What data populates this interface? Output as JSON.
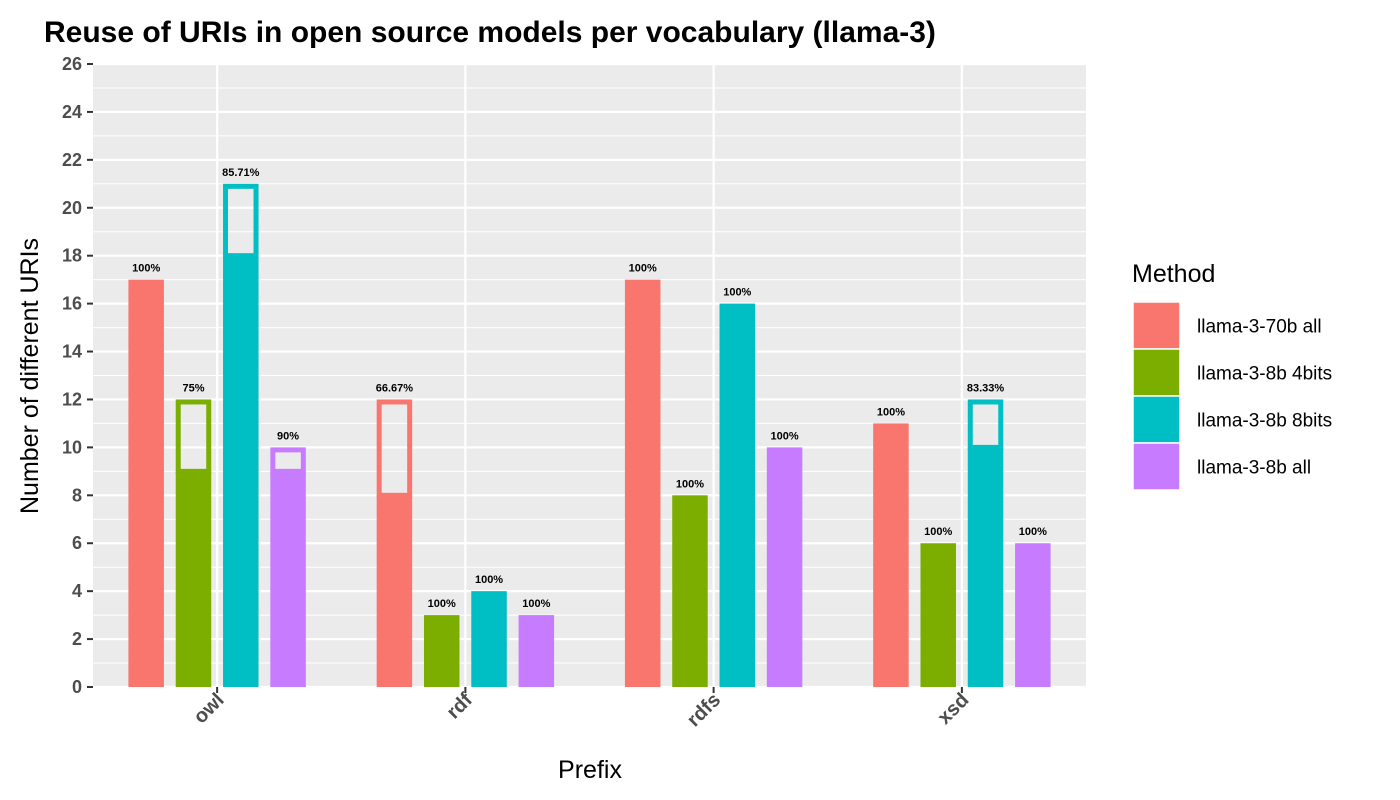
{
  "chart_data": {
    "type": "bar",
    "title": "Reuse of URIs in open source models per vocabulary (llama-3)",
    "xlabel": "Prefix",
    "ylabel": "Number of different URIs",
    "ylim": [
      0,
      26
    ],
    "yticks": [
      0,
      2,
      4,
      6,
      8,
      10,
      12,
      14,
      16,
      18,
      20,
      22,
      24,
      26
    ],
    "grid": true,
    "legend_title": "Method",
    "legend_position": "right",
    "categories": [
      "owl",
      "rdf",
      "rdfs",
      "xsd"
    ],
    "series": [
      {
        "name": "llama-3-70b all",
        "color": "#F8766D",
        "values": [
          17,
          12,
          17,
          11
        ],
        "filled_values": [
          17,
          8,
          17,
          11
        ],
        "labels": [
          "100%",
          "66.67%",
          "100%",
          "100%"
        ]
      },
      {
        "name": "llama-3-8b 4bits",
        "color": "#7CAE00",
        "values": [
          12,
          3,
          8,
          6
        ],
        "filled_values": [
          9,
          3,
          8,
          6
        ],
        "labels": [
          "75%",
          "100%",
          "100%",
          "100%"
        ]
      },
      {
        "name": "llama-3-8b 8bits",
        "color": "#00BFC4",
        "values": [
          21,
          4,
          16,
          12
        ],
        "filled_values": [
          18,
          4,
          16,
          10
        ],
        "labels": [
          "85.71%",
          "100%",
          "100%",
          "83.33%"
        ]
      },
      {
        "name": "llama-3-8b all",
        "color": "#C77CFF",
        "values": [
          10,
          3,
          10,
          6
        ],
        "filled_values": [
          9,
          3,
          10,
          6
        ],
        "labels": [
          "90%",
          "100%",
          "100%",
          "100%"
        ]
      }
    ]
  }
}
